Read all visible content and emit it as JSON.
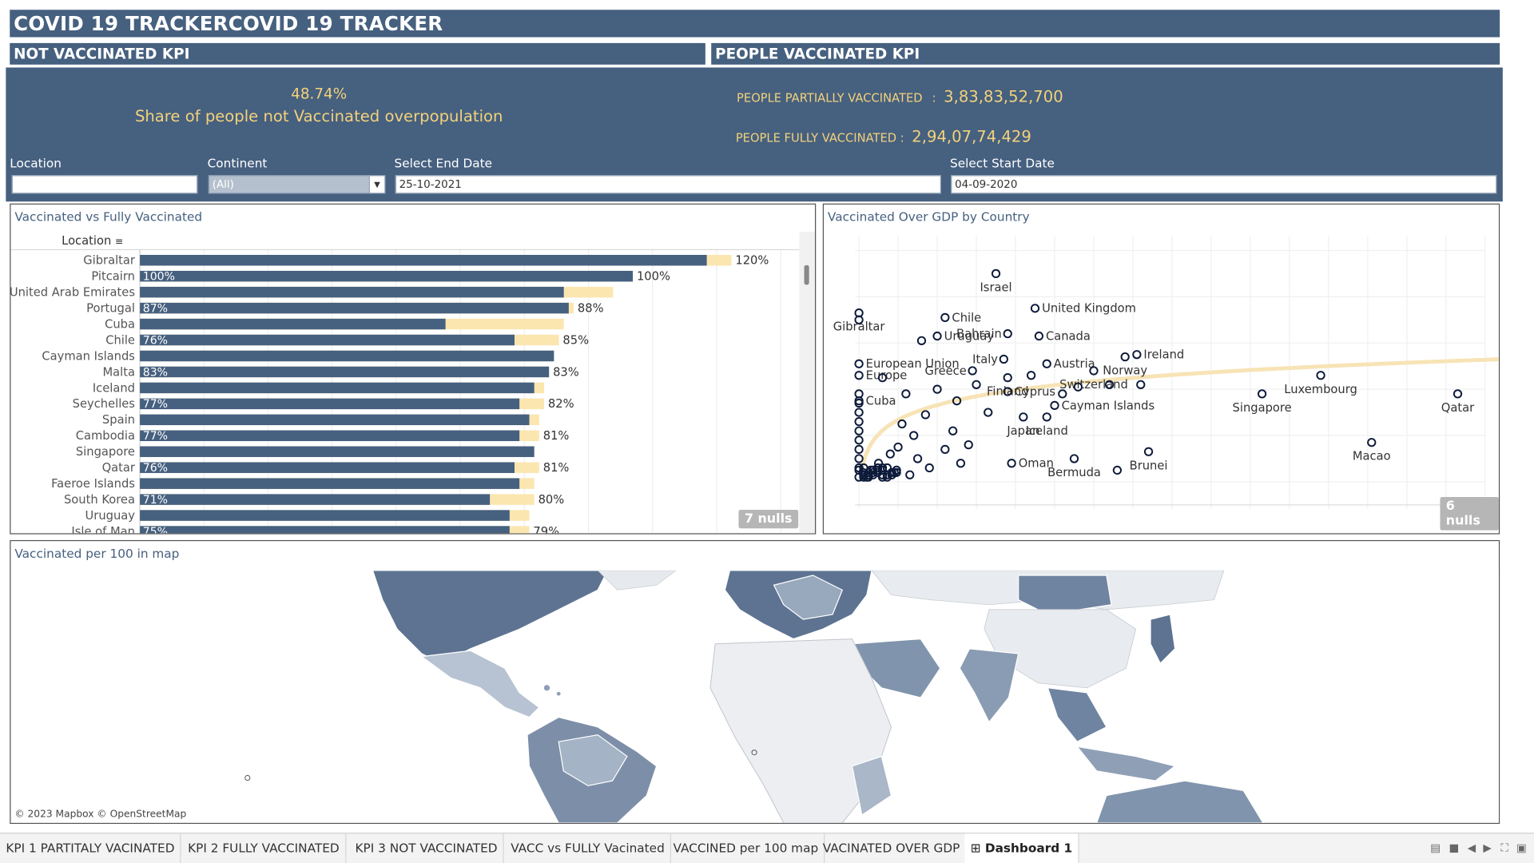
{
  "header": {
    "title": "COVID 19 TRACKERCOVID 19 TRACKER",
    "not_vaccinated_heading": "NOT VACCINATED KPI",
    "vaccinated_heading": "PEOPLE VACCINATED KPI"
  },
  "kpi": {
    "not_vaccinated_pct": "48.74%",
    "not_vaccinated_label": "Share of people not Vaccinated overpopulation",
    "partially_label": "PEOPLE PARTIALLY VACCINATED",
    "partially_sep": ":",
    "partially_value": "3,83,83,52,700",
    "fully_label": "PEOPLE FULLY VACCINATED",
    "fully_sep": ":",
    "fully_value": "2,94,07,74,429"
  },
  "filters": {
    "location_label": "Location",
    "location_value": "",
    "continent_label": "Continent",
    "continent_value": "(All)",
    "end_date_label": "Select End Date",
    "end_date_value": "25-10-2021",
    "start_date_label": "Select Start Date",
    "start_date_value": "04-09-2020"
  },
  "colors": {
    "navy": "#46607f",
    "gold": "#f2d27c",
    "light_bar": "#fbe6b0"
  },
  "bar_panel": {
    "title": "Vaccinated vs Fully Vaccinated",
    "column_header": "Location",
    "nulls_badge": "7 nulls",
    "chart_data": {
      "type": "bar",
      "orientation": "horizontal",
      "categories": [
        "Gibraltar",
        "Pitcairn",
        "United Arab Emirates",
        "Portugal",
        "Cuba",
        "Chile",
        "Cayman Islands",
        "Malta",
        "Iceland",
        "Seychelles",
        "Spain",
        "Cambodia",
        "Singapore",
        "Qatar",
        "Faeroe Islands",
        "South Korea",
        "Uruguay",
        "Isle of Man"
      ],
      "series": [
        {
          "name": "",
          "values": [
            115,
            100,
            86,
            87,
            62,
            76,
            84,
            83,
            80,
            77,
            79,
            77,
            80,
            76,
            77,
            71,
            75,
            75
          ]
        },
        {
          "name": "",
          "values": [
            120,
            100,
            96,
            88,
            86,
            85,
            84,
            83,
            82,
            82,
            81,
            81,
            80,
            81,
            80,
            80,
            79,
            79
          ]
        }
      ],
      "inner_labels": [
        "",
        "100%",
        "",
        "87%",
        "",
        "76%",
        "",
        "83%",
        "",
        "77%",
        "",
        "77%",
        "",
        "76%",
        "",
        "71%",
        "",
        "75%"
      ],
      "outer_labels": [
        "120%",
        "100%",
        "",
        "88%",
        "",
        "85%",
        "",
        "83%",
        "",
        "82%",
        "",
        "81%",
        "",
        "81%",
        "",
        "80%",
        "",
        "79%"
      ],
      "xlim": [
        0,
        130
      ]
    }
  },
  "scatter_panel": {
    "title": "Vaccinated Over GDP by Country",
    "nulls_badge": "6 nulls",
    "chart_data": {
      "type": "scatter",
      "points": [
        {
          "x": 0,
          "y": 123,
          "label": "Gibraltar"
        },
        {
          "x": 35,
          "y": 140,
          "label": "Israel"
        },
        {
          "x": 45,
          "y": 125,
          "label": "United Kingdom"
        },
        {
          "x": 22,
          "y": 121,
          "label": "Chile"
        },
        {
          "x": 20,
          "y": 113,
          "label": "Uruguay"
        },
        {
          "x": 38,
          "y": 114,
          "label": "Bahrain"
        },
        {
          "x": 46,
          "y": 113,
          "label": "Canada"
        },
        {
          "x": 71,
          "y": 105,
          "label": "Ireland"
        },
        {
          "x": 37,
          "y": 103,
          "label": "Italy"
        },
        {
          "x": 48,
          "y": 101,
          "label": "Austria"
        },
        {
          "x": 0,
          "y": 101,
          "label": "European Union"
        },
        {
          "x": 68,
          "y": 104,
          "label": "Norway"
        },
        {
          "x": 29,
          "y": 98,
          "label": "Greece"
        },
        {
          "x": 0,
          "y": 96,
          "label": "Europe"
        },
        {
          "x": 38,
          "y": 95,
          "label": "Finland"
        },
        {
          "x": 60,
          "y": 98,
          "label": "Switzerland"
        },
        {
          "x": 118,
          "y": 96,
          "label": "Luxembourg"
        },
        {
          "x": 0,
          "y": 85,
          "label": "Cuba"
        },
        {
          "x": 38,
          "y": 89,
          "label": "Cyprus"
        },
        {
          "x": 103,
          "y": 88,
          "label": "Singapore"
        },
        {
          "x": 153,
          "y": 88,
          "label": "Qatar"
        },
        {
          "x": 50,
          "y": 83,
          "label": "Cayman Islands"
        },
        {
          "x": 42,
          "y": 78,
          "label": "Japan"
        },
        {
          "x": 48,
          "y": 78,
          "label": "Iceland"
        },
        {
          "x": 131,
          "y": 67,
          "label": "Macao"
        },
        {
          "x": 74,
          "y": 63,
          "label": "Brunei"
        },
        {
          "x": 39,
          "y": 58,
          "label": "Oman"
        },
        {
          "x": 55,
          "y": 60,
          "label": "Bermuda"
        },
        {
          "x": 0,
          "y": 120,
          "label": ""
        },
        {
          "x": 16,
          "y": 111,
          "label": ""
        },
        {
          "x": 6,
          "y": 95,
          "label": ""
        },
        {
          "x": 12,
          "y": 88,
          "label": ""
        },
        {
          "x": 20,
          "y": 90,
          "label": ""
        },
        {
          "x": 25,
          "y": 85,
          "label": ""
        },
        {
          "x": 30,
          "y": 92,
          "label": ""
        },
        {
          "x": 33,
          "y": 80,
          "label": ""
        },
        {
          "x": 44,
          "y": 96,
          "label": ""
        },
        {
          "x": 52,
          "y": 88,
          "label": ""
        },
        {
          "x": 56,
          "y": 91,
          "label": ""
        },
        {
          "x": 64,
          "y": 92,
          "label": ""
        },
        {
          "x": 66,
          "y": 55,
          "label": ""
        },
        {
          "x": 72,
          "y": 92,
          "label": ""
        },
        {
          "x": 17,
          "y": 79,
          "label": ""
        },
        {
          "x": 14,
          "y": 70,
          "label": ""
        },
        {
          "x": 10,
          "y": 65,
          "label": ""
        },
        {
          "x": 8,
          "y": 62,
          "label": ""
        },
        {
          "x": 5,
          "y": 58,
          "label": ""
        },
        {
          "x": 3,
          "y": 55,
          "label": ""
        },
        {
          "x": 15,
          "y": 60,
          "label": ""
        },
        {
          "x": 22,
          "y": 64,
          "label": ""
        },
        {
          "x": 26,
          "y": 58,
          "label": ""
        },
        {
          "x": 18,
          "y": 56,
          "label": ""
        },
        {
          "x": 24,
          "y": 72,
          "label": ""
        },
        {
          "x": 28,
          "y": 66,
          "label": ""
        },
        {
          "x": 11,
          "y": 75,
          "label": ""
        },
        {
          "x": 2,
          "y": 52,
          "label": ""
        },
        {
          "x": 1,
          "y": 54,
          "label": ""
        },
        {
          "x": 6,
          "y": 53,
          "label": ""
        },
        {
          "x": 9,
          "y": 54,
          "label": ""
        },
        {
          "x": 13,
          "y": 53,
          "label": ""
        }
      ],
      "trend": "logarithmic"
    }
  },
  "map_panel": {
    "title": "Vaccinated per 100 in map",
    "attribution": "© 2023 Mapbox © OpenStreetMap"
  },
  "tabs": [
    {
      "label": "KPI 1 PARTITALY VACINATED"
    },
    {
      "label": "KPI 2 FULLY VACCINATED"
    },
    {
      "label": "KPI 3 NOT VACCINATED"
    },
    {
      "label": "VACC vs FULLY Vacinated"
    },
    {
      "label": "VACCINED per 100 map"
    },
    {
      "label": "VACINATED OVER GDP"
    },
    {
      "label": "Dashboard 1"
    }
  ]
}
